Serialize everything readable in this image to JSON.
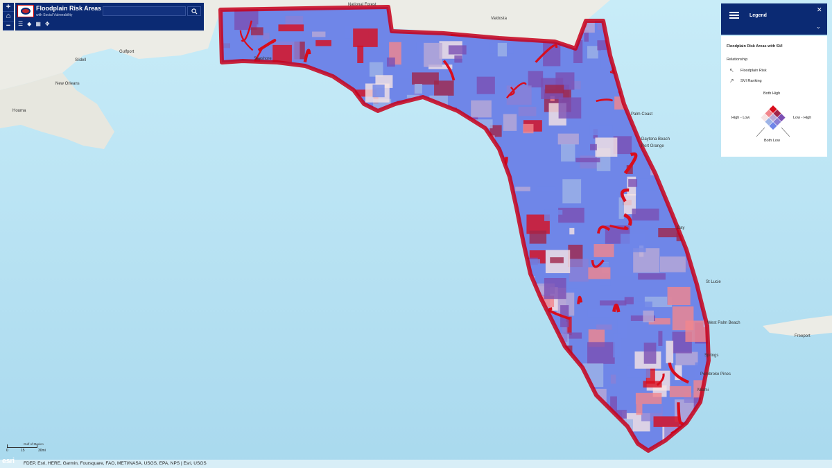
{
  "app": {
    "title": "Floodplain Risk Areas",
    "subtitle": "with Social Vulnerability",
    "search": {
      "value": "",
      "placeholder": ""
    }
  },
  "zoom": {
    "in_label": "+",
    "home_label": "⌂",
    "out_label": "−"
  },
  "toolbar": [
    {
      "name": "list-icon",
      "glyph": "☰"
    },
    {
      "name": "layers-icon",
      "glyph": "◆"
    },
    {
      "name": "basemap-icon",
      "glyph": "▦"
    },
    {
      "name": "share-icon",
      "glyph": "✥"
    }
  ],
  "legend": {
    "title": "Legend",
    "close_label": "✕",
    "collapse_label": "⌄",
    "layer_title": "Floodplain Risk Areas with SVI",
    "relationship_label": "Relationship",
    "axis1_label": "Floodplain Risk",
    "axis2_label": "SVI Ranking",
    "top_label": "Both High",
    "left_label": "High - Low",
    "right_label": "Low - High",
    "bottom_label": "Both Low",
    "colors": {
      "both_high": "#7b4fb3",
      "mid_high_left": "#a0264a",
      "mid_high_right": "#8a7fd6",
      "high_low": "#d90d1c",
      "mid": "#b9a9d6",
      "low_high": "#6f86e8",
      "mid_low_left": "#f2868c",
      "mid_low_right": "#9db3e6",
      "both_low": "#f6e3e3"
    }
  },
  "places": [
    {
      "label": "Valdosta"
    },
    {
      "label": "National Forest"
    },
    {
      "label": "Gulfport"
    },
    {
      "label": "Slidell"
    },
    {
      "label": "New Orleans"
    },
    {
      "label": "Houma"
    },
    {
      "label": "Seashore"
    },
    {
      "label": "Palm Coast"
    },
    {
      "label": "Daytona Beach"
    },
    {
      "label": "Port Orange"
    },
    {
      "label": "Bay"
    },
    {
      "label": "St Lucie"
    },
    {
      "label": "West Palm Beach"
    },
    {
      "label": "Springs"
    },
    {
      "label": "Pembroke Pines"
    },
    {
      "label": "Miami"
    },
    {
      "label": "Freeport"
    },
    {
      "label": "Gulf of Mexico"
    }
  ],
  "scale": {
    "left_label": "0",
    "mid_label": "15",
    "right_label": "30mi"
  },
  "attribution": "FDEP, Esri, HERE, Garmin, Foursquare, FAO, METI/NASA, USGS, EPA, NPS | Esri, USGS",
  "esri_label": "esri"
}
